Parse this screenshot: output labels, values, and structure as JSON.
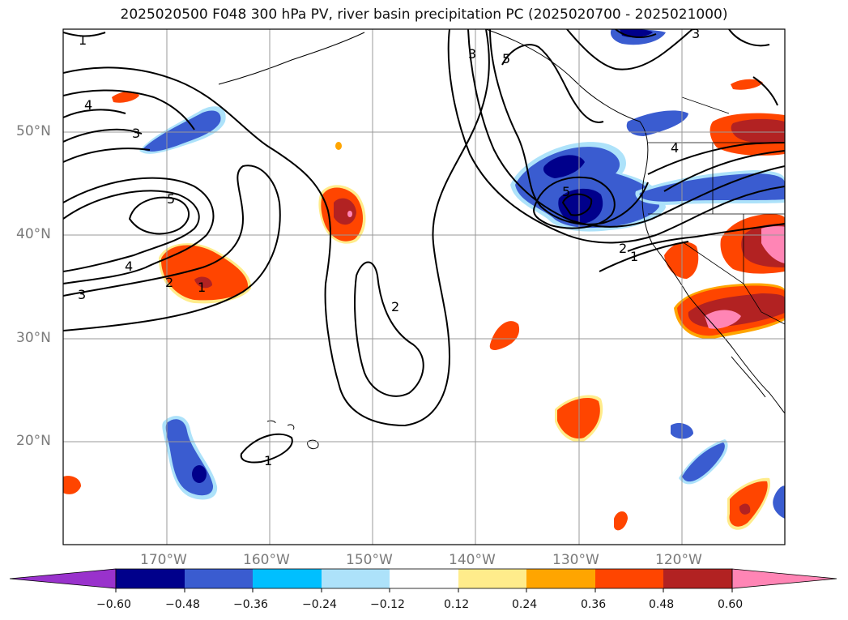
{
  "title": "2025020500 F048 300 hPa PV, river basin precipitation PC (2025020700 - 2025021000)",
  "map": {
    "lon_range": [
      -180,
      -110
    ],
    "lat_range": [
      10,
      60
    ],
    "gridline_color": "#999999",
    "lat_labels": [
      "50°N",
      "40°N",
      "30°N",
      "20°N"
    ],
    "lon_labels": [
      "170°W",
      "160°W",
      "150°W",
      "140°W",
      "130°W",
      "120°W"
    ],
    "pv_contour_labels": [
      "1",
      "4",
      "3",
      "5",
      "4",
      "2",
      "1",
      "3",
      "2",
      "1",
      "3",
      "5",
      "5",
      "4",
      "2",
      "1",
      "3"
    ]
  },
  "colorbar": {
    "colors": [
      "#9932CC",
      "#00008B",
      "#3A5CD0",
      "#00BFFF",
      "#ADE2FA",
      "#FFFFFF",
      "#FFEC8B",
      "#FFA500",
      "#FF4500",
      "#B22222",
      "#FF85B5"
    ],
    "tick_labels": [
      "−0.60",
      "−0.48",
      "−0.36",
      "−0.24",
      "−0.12",
      "0.12",
      "0.24",
      "0.36",
      "0.48",
      "0.60"
    ]
  }
}
